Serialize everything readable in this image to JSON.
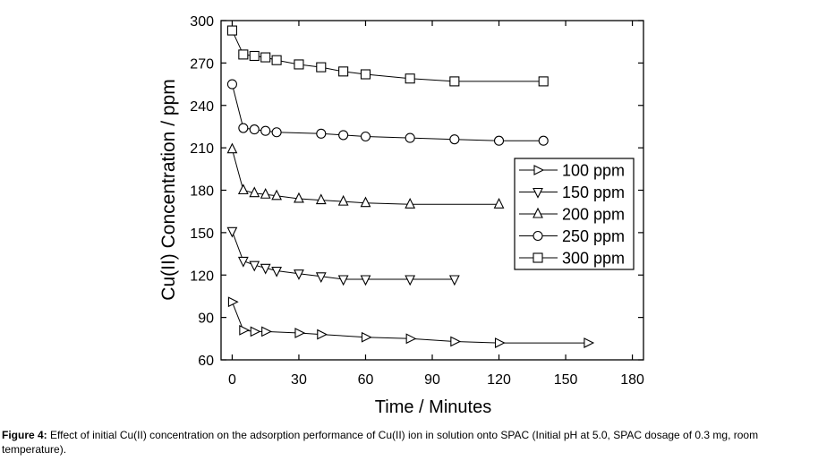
{
  "chart_data": {
    "type": "line",
    "title": "",
    "xlabel": "Time / Minutes",
    "ylabel": "Cu(II) Concentration / ppm",
    "xlim": [
      -5,
      185
    ],
    "ylim": [
      60,
      300
    ],
    "xticks": [
      0,
      30,
      60,
      90,
      120,
      150,
      180
    ],
    "yticks": [
      60,
      90,
      120,
      150,
      180,
      210,
      240,
      270,
      300
    ],
    "grid": false,
    "legend_position": "right",
    "series": [
      {
        "name": "100 ppm",
        "marker": "triangle-right",
        "x": [
          0,
          5,
          10,
          15,
          30,
          40,
          60,
          80,
          100,
          120,
          160
        ],
        "y": [
          101,
          81,
          80,
          80,
          79,
          78,
          76,
          75,
          73,
          72,
          72
        ]
      },
      {
        "name": "150 ppm",
        "marker": "triangle-down",
        "x": [
          0,
          5,
          10,
          15,
          20,
          30,
          40,
          50,
          60,
          80,
          100
        ],
        "y": [
          151,
          130,
          127,
          125,
          123,
          121,
          119,
          117,
          117,
          117,
          117
        ]
      },
      {
        "name": "200 ppm",
        "marker": "triangle-up",
        "x": [
          0,
          5,
          10,
          15,
          20,
          30,
          40,
          50,
          60,
          80,
          120
        ],
        "y": [
          209,
          180,
          178,
          177,
          176,
          174,
          173,
          172,
          171,
          170,
          170
        ]
      },
      {
        "name": "250 ppm",
        "marker": "circle",
        "x": [
          0,
          5,
          10,
          15,
          20,
          40,
          50,
          60,
          80,
          100,
          120,
          140
        ],
        "y": [
          255,
          224,
          223,
          222,
          221,
          220,
          219,
          218,
          217,
          216,
          215,
          215
        ]
      },
      {
        "name": "300 ppm",
        "marker": "square",
        "x": [
          0,
          5,
          10,
          15,
          20,
          30,
          40,
          50,
          60,
          80,
          100,
          140
        ],
        "y": [
          293,
          276,
          275,
          274,
          272,
          269,
          267,
          264,
          262,
          259,
          257,
          257
        ]
      }
    ]
  },
  "caption": {
    "label": "Figure 4:",
    "text": " Effect of initial Cu(II) concentration on the adsorption performance of Cu(II) ion in solution onto SPAC (Initial pH at 5.0, SPAC dosage of 0.3 mg, room temperature)."
  }
}
